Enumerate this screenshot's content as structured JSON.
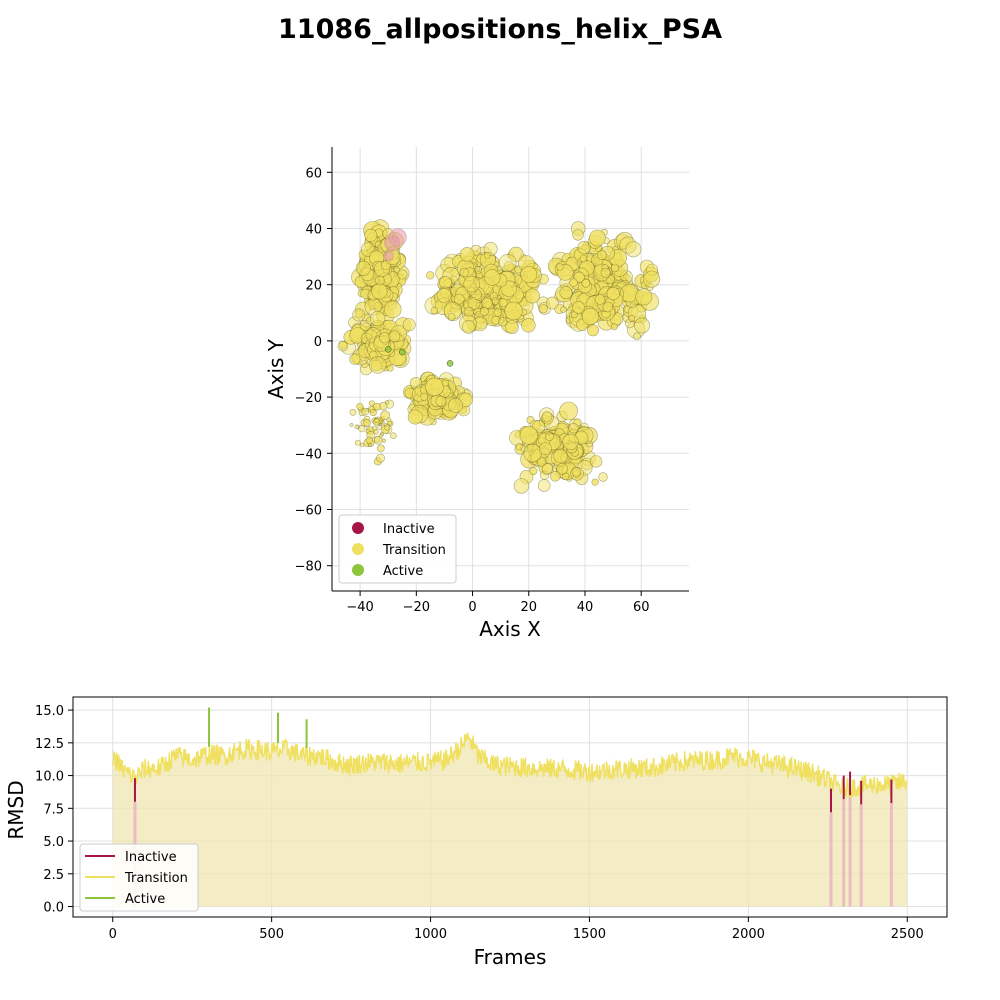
{
  "title": "11086_allpositions_helix_PSA",
  "colors": {
    "inactive": "#a51645",
    "transition": "#f0e060",
    "active": "#8dc43c",
    "fill": "#efe6b0",
    "grid": "#e0e0e0"
  },
  "legend_labels": {
    "inactive": "Inactive",
    "transition": "Transition",
    "active": "Active"
  },
  "chart_data": [
    {
      "type": "scatter",
      "xlabel": "Axis X",
      "ylabel": "Axis Y",
      "xlim": [
        -50,
        77
      ],
      "ylim": [
        -89,
        69
      ],
      "xticks": [
        -40,
        -20,
        0,
        20,
        40,
        60
      ],
      "yticks": [
        -80,
        -60,
        -40,
        -20,
        0,
        20,
        40,
        60
      ],
      "legend": [
        "Inactive",
        "Transition",
        "Active"
      ],
      "legend_position": "lower-left",
      "clusters": [
        {
          "name": "upper-left helix column",
          "state": "Transition",
          "x_range": [
            -42,
            -24
          ],
          "y_range": [
            5,
            44
          ],
          "approx_points": 260
        },
        {
          "name": "left band",
          "state": "Transition",
          "x_range": [
            -48,
            -20
          ],
          "y_range": [
            -12,
            12
          ],
          "approx_points": 120
        },
        {
          "name": "upper-center cloud",
          "state": "Transition",
          "x_range": [
            -20,
            30
          ],
          "y_range": [
            0,
            35
          ],
          "approx_points": 320
        },
        {
          "name": "upper-right cloud",
          "state": "Transition",
          "x_range": [
            25,
            68
          ],
          "y_range": [
            -5,
            45
          ],
          "approx_points": 260
        },
        {
          "name": "middle-left cluster",
          "state": "Transition",
          "x_range": [
            -25,
            0
          ],
          "y_range": [
            -30,
            -10
          ],
          "approx_points": 160
        },
        {
          "name": "lower-center cluster",
          "state": "Transition",
          "x_range": [
            10,
            50
          ],
          "y_range": [
            -55,
            -22
          ],
          "approx_points": 160
        },
        {
          "name": "sparse lower-left",
          "state": "Transition",
          "x_range": [
            -45,
            -25
          ],
          "y_range": [
            -45,
            -15
          ],
          "approx_points": 60
        },
        {
          "name": "pink points",
          "state": "Inactive",
          "x_range": [
            -32,
            -25
          ],
          "y_range": [
            25,
            44
          ],
          "approx_points": 4
        }
      ]
    },
    {
      "type": "line",
      "xlabel": "Frames",
      "ylabel": "RMSD",
      "xlim": [
        -125,
        2625
      ],
      "ylim": [
        -0.8,
        16
      ],
      "xticks": [
        0,
        500,
        1000,
        1500,
        2000,
        2500
      ],
      "yticks": [
        "0.0",
        "2.5",
        "5.0",
        "7.5",
        "10.0",
        "12.5",
        "15.0"
      ],
      "legend": [
        "Inactive",
        "Transition",
        "Active"
      ],
      "legend_position": "lower-left",
      "profile": [
        [
          0,
          11.5
        ],
        [
          30,
          10.5
        ],
        [
          70,
          9.8
        ],
        [
          100,
          10.5
        ],
        [
          150,
          10.6
        ],
        [
          200,
          11.5
        ],
        [
          250,
          11.2
        ],
        [
          300,
          11.6
        ],
        [
          350,
          11.5
        ],
        [
          400,
          12.0
        ],
        [
          450,
          12.0
        ],
        [
          500,
          11.8
        ],
        [
          550,
          12.0
        ],
        [
          600,
          11.5
        ],
        [
          650,
          11.5
        ],
        [
          700,
          11.0
        ],
        [
          750,
          10.8
        ],
        [
          800,
          11.0
        ],
        [
          850,
          11.0
        ],
        [
          900,
          10.9
        ],
        [
          950,
          11.0
        ],
        [
          1000,
          11.0
        ],
        [
          1050,
          11.2
        ],
        [
          1100,
          12.3
        ],
        [
          1120,
          13.0
        ],
        [
          1150,
          11.5
        ],
        [
          1200,
          10.8
        ],
        [
          1300,
          10.6
        ],
        [
          1400,
          10.5
        ],
        [
          1500,
          10.3
        ],
        [
          1600,
          10.5
        ],
        [
          1700,
          10.6
        ],
        [
          1800,
          11.1
        ],
        [
          1900,
          11.2
        ],
        [
          1950,
          11.5
        ],
        [
          2000,
          11.3
        ],
        [
          2050,
          11.0
        ],
        [
          2100,
          10.8
        ],
        [
          2200,
          10.2
        ],
        [
          2260,
          9.5
        ],
        [
          2300,
          9.0
        ],
        [
          2350,
          9.2
        ],
        [
          2400,
          9.3
        ],
        [
          2450,
          9.3
        ],
        [
          2500,
          9.6
        ]
      ],
      "active_spikes": [
        [
          303,
          15.2
        ],
        [
          520,
          14.8
        ],
        [
          610,
          14.3
        ]
      ],
      "inactive_spikes": [
        [
          70,
          8.0
        ],
        [
          2260,
          7.2
        ],
        [
          2300,
          8.2
        ],
        [
          2320,
          8.5
        ],
        [
          2355,
          7.8
        ],
        [
          2450,
          7.9
        ]
      ]
    }
  ]
}
